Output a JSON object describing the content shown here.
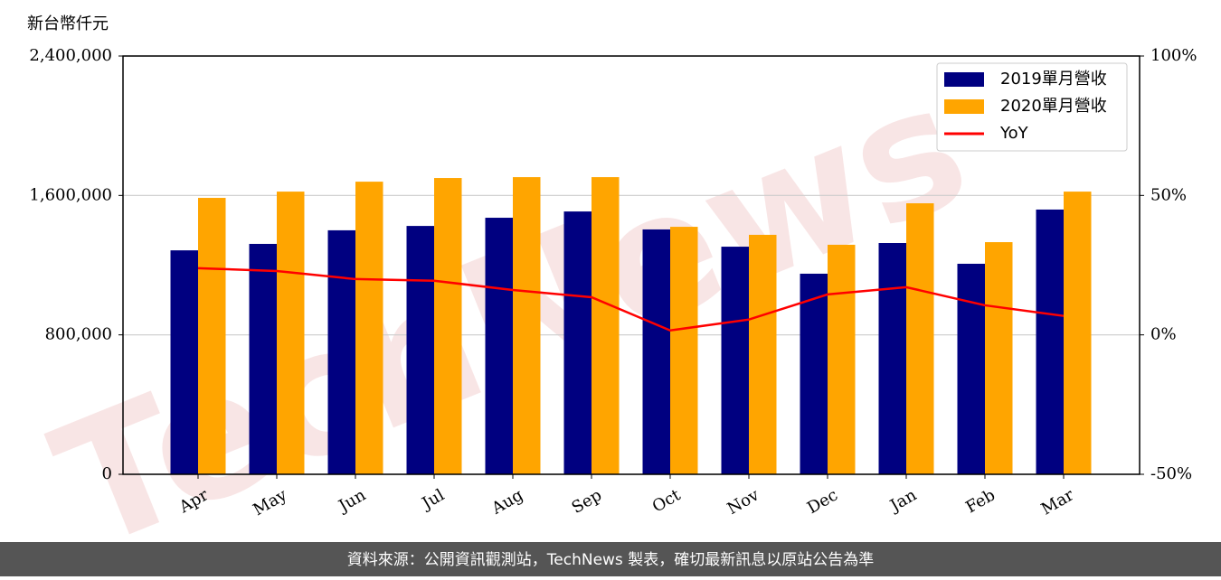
{
  "chart_data": {
    "type": "bar",
    "ylabel": "新台幣仟元",
    "watermark": "TechNews",
    "footer": "資料來源：公開資訊觀測站，TechNews 製表，確切最新訊息以原站公告為準",
    "categories": [
      "Apr",
      "May",
      "Jun",
      "Jul",
      "Aug",
      "Sep",
      "Oct",
      "Nov",
      "Dec",
      "Jan",
      "Feb",
      "Mar"
    ],
    "series": [
      {
        "name": "2019單月營收",
        "color": "#000080",
        "type": "bar",
        "values": [
          1285000,
          1322000,
          1400000,
          1425000,
          1472000,
          1508000,
          1405000,
          1306000,
          1151000,
          1327000,
          1208000,
          1519000
        ]
      },
      {
        "name": "2020單月營收",
        "color": "#ffa500",
        "type": "bar",
        "values": [
          1586000,
          1622000,
          1679000,
          1700000,
          1705000,
          1705000,
          1420000,
          1374000,
          1317000,
          1555000,
          1332000,
          1622000
        ]
      },
      {
        "name": "YoY",
        "color": "#ff0000",
        "type": "line",
        "axis": "y2",
        "values": [
          23.9,
          22.9,
          20,
          19.4,
          16.1,
          13.5,
          1.6,
          5.5,
          14.5,
          17.1,
          10.6,
          6.8
        ]
      }
    ],
    "ylim": [
      0,
      2400000
    ],
    "yticks": [
      0,
      {
        "value": 800000,
        "label": "800,000"
      },
      {
        "value": 1600000,
        "label": "1,600,000"
      },
      {
        "value": 2400000,
        "label": "2,400,000"
      }
    ],
    "y2lim": [
      -50,
      100
    ],
    "y2ticks": [
      {
        "value": -50,
        "label": "-50%"
      },
      {
        "value": 0,
        "label": "0%"
      },
      {
        "value": 50,
        "label": "50%"
      },
      {
        "value": 100,
        "label": "100%"
      }
    ],
    "grid": true,
    "legend": "upper right"
  }
}
